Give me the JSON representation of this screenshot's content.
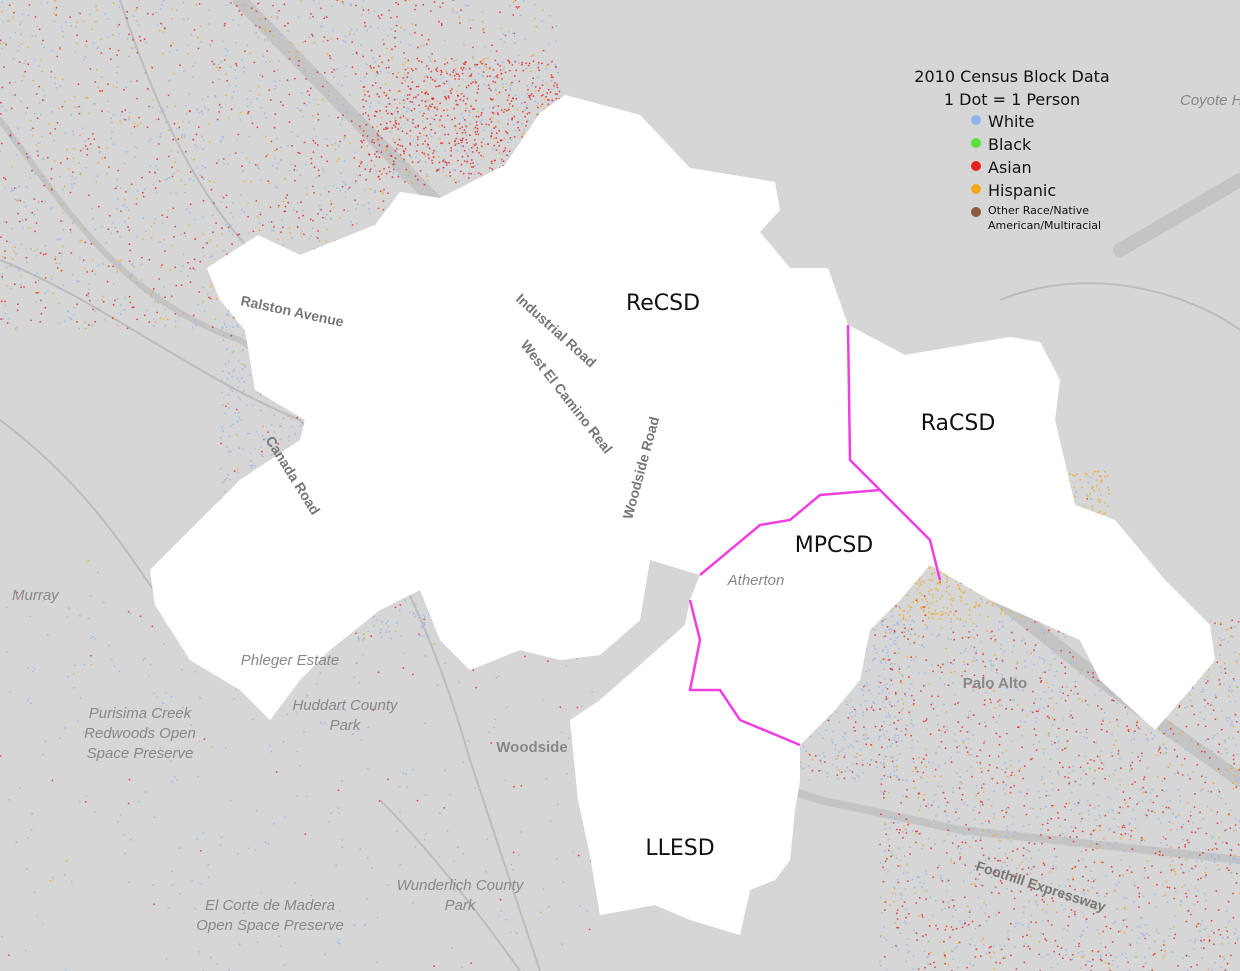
{
  "legend": {
    "title": "2010 Census Block Data",
    "subtitle": "1 Dot = 1 Person",
    "items": [
      {
        "label": "White",
        "color": "#8fb4ee"
      },
      {
        "label": "Black",
        "color": "#5ee03a"
      },
      {
        "label": "Asian",
        "color": "#e8221c"
      },
      {
        "label": "Hispanic",
        "color": "#f2a71c"
      },
      {
        "label": [
          "Other Race/Native",
          "American/Multiracial"
        ],
        "color": "#8b5a3c"
      }
    ]
  },
  "districts": [
    "ReCSD",
    "RaCSD",
    "MPCSD",
    "LLESD"
  ],
  "roads": [
    "Ralston Avenue",
    "Industrial Road",
    "West El Camino Real",
    "Canada Road",
    "Woodside Road",
    "Foothill Expressway"
  ],
  "places": [
    [
      "Coyote H"
    ],
    [
      "Murray"
    ],
    [
      "Phleger Estate"
    ],
    [
      "Huddart County",
      "Park"
    ],
    [
      "Purisima Creek",
      "Redwoods Open",
      "Space Preserve"
    ],
    [
      "Woodside"
    ],
    [
      "Wunderlich County",
      "Park"
    ],
    [
      "El Corte de Madera",
      "Open Space Preserve"
    ],
    [
      "Atherton"
    ],
    [
      "Palo Alto"
    ]
  ]
}
